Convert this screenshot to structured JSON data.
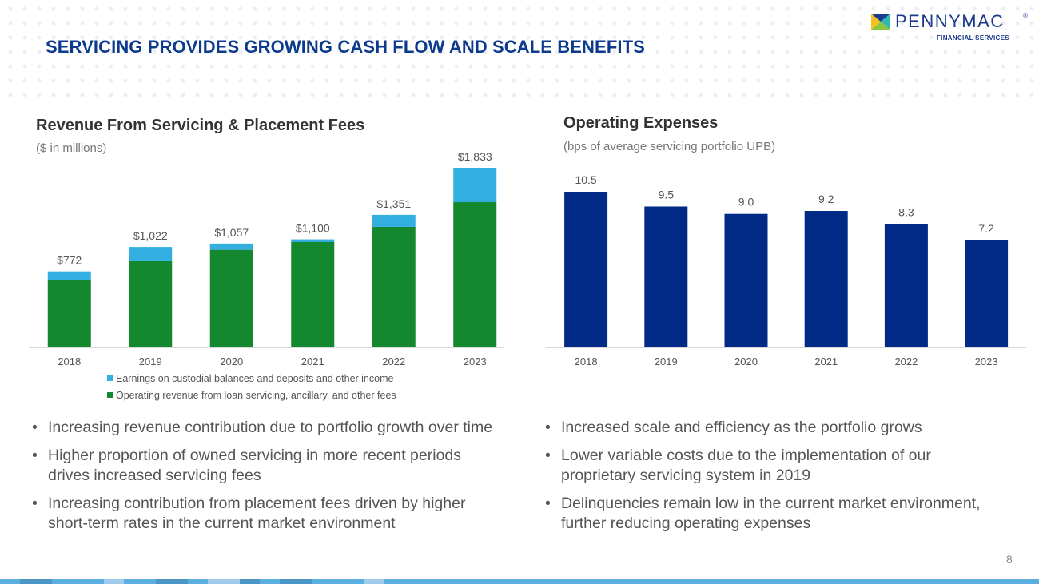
{
  "title": "SERVICING PROVIDES GROWING CASH FLOW AND SCALE BENEFITS",
  "logo": {
    "name": "PENNYMAC",
    "registered": "®",
    "subtitle": "FINANCIAL SERVICES"
  },
  "left": {
    "heading": "Revenue From Servicing & Placement Fees",
    "subheading": "($ in millions)",
    "bullets": [
      "Increasing revenue contribution due to portfolio growth over time",
      "Higher proportion of owned servicing in more recent periods drives increased servicing fees",
      "Increasing contribution from placement fees driven by higher short-term rates in the current market environment"
    ]
  },
  "right": {
    "heading": "Operating Expenses",
    "subheading": "(bps of average servicing portfolio UPB)",
    "bullets": [
      "Increased scale and efficiency as the portfolio grows",
      "Lower variable costs due to the implementation of our proprietary servicing system in 2019",
      "Delinquencies remain low in the current market environment, further reducing operating expenses"
    ]
  },
  "page_number": "8",
  "colors": {
    "green": "#14882e",
    "light_blue": "#33aee0",
    "navy": "#002a86",
    "title": "#0c3a8c"
  },
  "chart_data": [
    {
      "type": "bar",
      "stacked": true,
      "title": "Revenue From Servicing & Placement Fees",
      "ylabel": "$ in millions",
      "categories": [
        "2018",
        "2019",
        "2020",
        "2021",
        "2022",
        "2023"
      ],
      "series": [
        {
          "name": "Operating revenue from loan servicing, ancillary, and other fees",
          "color": "#14882e",
          "values": [
            687,
            876,
            993,
            1072,
            1228,
            1481
          ]
        },
        {
          "name": "Earnings on custodial balances and deposits and other income",
          "color": "#33aee0",
          "values": [
            85,
            146,
            64,
            28,
            123,
            352
          ]
        }
      ],
      "totals": [
        772,
        1022,
        1057,
        1100,
        1351,
        1833
      ],
      "total_labels": [
        "$772",
        "$1,022",
        "$1,057",
        "$1,100",
        "$1,351",
        "$1,833"
      ],
      "ylim": [
        0,
        1833
      ],
      "grid": false,
      "legend": "bottom"
    },
    {
      "type": "bar",
      "title": "Operating Expenses",
      "ylabel": "bps of average servicing portfolio UPB",
      "categories": [
        "2018",
        "2019",
        "2020",
        "2021",
        "2022",
        "2023"
      ],
      "values": [
        10.5,
        9.5,
        9.0,
        9.2,
        8.3,
        7.2
      ],
      "labels": [
        "10.5",
        "9.5",
        "9.0",
        "9.2",
        "8.3",
        "7.2"
      ],
      "color": "#002a86",
      "ylim": [
        0,
        10.5
      ],
      "grid": false
    }
  ]
}
